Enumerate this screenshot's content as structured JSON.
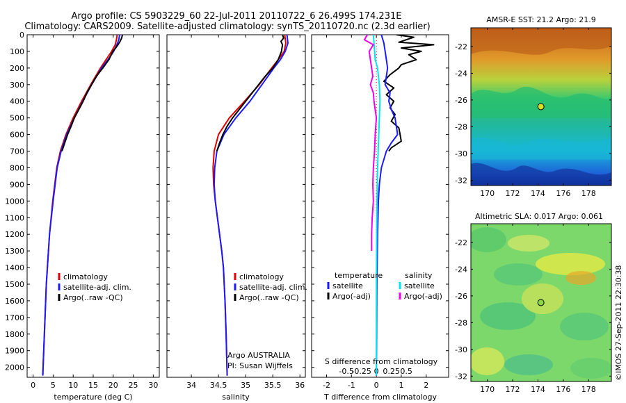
{
  "titles": {
    "line1": "Argo profile: CS 5903229_60 22-Jul-2011 20110722_6 26.499S 174.231E",
    "line2": "Climatology: CARS2009. Satellite-adjusted climatology: synTS_20110720.nc (2.3d earlier)"
  },
  "depth_axis": {
    "ticks": [
      0,
      100,
      200,
      300,
      400,
      500,
      600,
      700,
      800,
      900,
      1000,
      1100,
      1200,
      1300,
      1400,
      1500,
      1600,
      1700,
      1800,
      1900,
      2000
    ],
    "ylim": [
      0,
      2060
    ]
  },
  "colors": {
    "climatology": "#e00000",
    "satellite": "#1a1aff",
    "argo": "#000000",
    "sat_salinity": "#00e5ee",
    "argo_salinity": "#ee00ee"
  },
  "credit": "©IMOS 27-Sep-2011 22:30:38",
  "chart_data": [
    {
      "id": "temperature",
      "type": "line",
      "xlabel": "temperature (deg C)",
      "xlim": [
        -1.5,
        31.5
      ],
      "xticks": [
        0,
        5,
        10,
        15,
        20,
        25,
        30
      ],
      "legend": [
        "climatology",
        "satellite-adj. clim.",
        "Argo(..raw -QC)"
      ],
      "series": [
        {
          "name": "climatology",
          "depth": [
            0,
            30,
            60,
            100,
            150,
            200,
            300,
            400,
            500,
            600,
            700,
            800,
            1000,
            1200,
            1500,
            1800,
            2050
          ],
          "values": [
            21.0,
            20.8,
            20.5,
            19.6,
            18.2,
            16.8,
            14.4,
            12.1,
            10.0,
            8.2,
            6.8,
            5.9,
            4.9,
            4.1,
            3.3,
            2.8,
            2.4
          ]
        },
        {
          "name": "satellite-adj. clim.",
          "depth": [
            0,
            30,
            60,
            100,
            150,
            200,
            300,
            400,
            500,
            600,
            700,
            800,
            1000,
            1200,
            1500,
            1800,
            2050
          ],
          "values": [
            21.6,
            21.4,
            20.9,
            20.1,
            18.7,
            17.1,
            14.6,
            12.4,
            10.3,
            8.4,
            7.0,
            6.0,
            5.0,
            4.1,
            3.3,
            2.8,
            2.4
          ]
        },
        {
          "name": "Argo(..raw -QC)",
          "depth": [
            0,
            20,
            40,
            60,
            80,
            100,
            150,
            200,
            250,
            300,
            350,
            400,
            450,
            500,
            550,
            600,
            650,
            700
          ],
          "values": [
            22.3,
            22.1,
            21.7,
            21.2,
            20.6,
            19.9,
            18.9,
            17.4,
            15.8,
            14.6,
            13.4,
            12.5,
            11.4,
            10.3,
            9.5,
            8.6,
            7.9,
            7.2
          ]
        }
      ]
    },
    {
      "id": "salinity",
      "type": "line",
      "xlabel": "salinity",
      "xlim": [
        33.55,
        36.1
      ],
      "xticks": [
        34,
        34.5,
        35,
        35.5,
        36
      ],
      "legend": [
        "climatology",
        "satellite-adj. clim.",
        "Argo(..raw -QC)"
      ],
      "annotation": [
        "Argo AUSTRALIA",
        "PI: Susan Wijffels"
      ],
      "series": [
        {
          "name": "climatology",
          "depth": [
            0,
            50,
            100,
            150,
            200,
            300,
            400,
            500,
            600,
            700,
            800,
            900,
            1000,
            1100,
            1200,
            1300,
            1400,
            1600,
            1800,
            2050
          ],
          "values": [
            35.72,
            35.74,
            35.71,
            35.6,
            35.48,
            35.25,
            34.98,
            34.7,
            34.5,
            34.42,
            34.4,
            34.41,
            34.44,
            34.48,
            34.52,
            34.56,
            34.59,
            34.62,
            34.64,
            34.66
          ]
        },
        {
          "name": "satellite-adj. clim.",
          "depth": [
            0,
            50,
            100,
            150,
            200,
            300,
            400,
            500,
            600,
            700,
            800,
            900,
            1000,
            1100,
            1200,
            1300,
            1400,
            1600,
            1800,
            2050
          ],
          "values": [
            35.76,
            35.78,
            35.73,
            35.64,
            35.52,
            35.3,
            35.08,
            34.82,
            34.6,
            34.47,
            34.43,
            34.42,
            34.44,
            34.48,
            34.52,
            34.56,
            34.59,
            34.62,
            34.64,
            34.66
          ]
        },
        {
          "name": "Argo(..raw -QC)",
          "depth": [
            0,
            20,
            40,
            60,
            80,
            100,
            150,
            200,
            250,
            300,
            350,
            400,
            450,
            500,
            550,
            600,
            650,
            700
          ],
          "values": [
            35.68,
            35.7,
            35.65,
            35.68,
            35.67,
            35.66,
            35.6,
            35.5,
            35.36,
            35.24,
            35.12,
            35.0,
            34.88,
            34.76,
            34.66,
            34.58,
            34.52,
            34.47
          ]
        }
      ]
    },
    {
      "id": "differences",
      "type": "line",
      "xlabel": "T difference from climatology",
      "xlabel_top": "S difference from climatology",
      "xlim": [
        -2.6,
        2.9
      ],
      "xticks": [
        -2,
        -1,
        0,
        1,
        2
      ],
      "sticks": [
        -0.5,
        -0.25,
        0,
        0.25,
        0.5
      ],
      "sticks_labels": [
        "-0.5",
        "-0.25",
        "0",
        "0.25",
        "0.5"
      ],
      "legend_headers": [
        "temperature",
        "salinity"
      ],
      "legend": [
        "satellite",
        "Argo(-adj)",
        "satellite",
        "Argo(-adj)"
      ],
      "series": [
        {
          "name": "T satellite",
          "depth": [
            0,
            50,
            100,
            150,
            200,
            250,
            300,
            350,
            400,
            450,
            500,
            550,
            600,
            650,
            700,
            750,
            800,
            900,
            1000,
            1200,
            1500,
            1800,
            2050
          ],
          "values": [
            0.2,
            0.3,
            0.35,
            0.4,
            0.45,
            0.4,
            0.35,
            0.55,
            0.5,
            0.6,
            0.75,
            0.8,
            0.85,
            0.6,
            0.4,
            0.3,
            0.2,
            0.12,
            0.08,
            0.05,
            0.02,
            0.01,
            0.0
          ]
        },
        {
          "name": "T Argo(-adj)",
          "depth": [
            0,
            15,
            30,
            45,
            60,
            80,
            100,
            120,
            150,
            180,
            200,
            240,
            280,
            320,
            360,
            400,
            440,
            480,
            520,
            560,
            600,
            640,
            680,
            700
          ],
          "values": [
            0.8,
            1.5,
            1.2,
            0.9,
            2.3,
            1.0,
            1.8,
            1.3,
            1.6,
            1.0,
            0.9,
            0.55,
            0.3,
            0.7,
            0.4,
            0.7,
            0.55,
            0.75,
            0.6,
            0.9,
            0.95,
            1.0,
            0.6,
            0.5
          ]
        },
        {
          "name": "S satellite",
          "depth": [
            0,
            50,
            100,
            150,
            200,
            300,
            400,
            500,
            600,
            800,
            1000,
            1500,
            2050
          ],
          "values": [
            -0.05,
            -0.04,
            -0.03,
            -0.02,
            0.02,
            0.05,
            0.06,
            0.05,
            0.04,
            0.02,
            0.01,
            0.0,
            0.0
          ]
        },
        {
          "name": "S Argo(-adj)",
          "depth": [
            0,
            30,
            60,
            100,
            150,
            200,
            250,
            300,
            350,
            400,
            450,
            500,
            600,
            700,
            800,
            900,
            1000,
            1100,
            1200,
            1300
          ],
          "values": [
            -0.15,
            -0.2,
            -0.05,
            -0.12,
            -0.1,
            -0.08,
            -0.06,
            -0.1,
            -0.05,
            -0.04,
            -0.02,
            0.0,
            -0.02,
            -0.03,
            -0.05,
            -0.06,
            -0.05,
            -0.07,
            -0.08,
            -0.08
          ]
        }
      ]
    },
    {
      "id": "sst_map",
      "type": "heatmap",
      "title": "AMSR-E SST: 21.2 Argo: 21.9",
      "lon_ticks": [
        170,
        172,
        174,
        176,
        178
      ],
      "lat_ticks": [
        -22,
        -24,
        -26,
        -28,
        -30,
        -32
      ],
      "lon_range": [
        168.7,
        179.8
      ],
      "lat_range": [
        -32.4,
        -20.6
      ],
      "profile_lon": 174.231,
      "profile_lat": -26.499
    },
    {
      "id": "sla_map",
      "type": "heatmap",
      "title": "Altimetric SLA: 0.017 Argo: 0.061",
      "lon_ticks": [
        170,
        172,
        174,
        176,
        178
      ],
      "lat_ticks": [
        -22,
        -24,
        -26,
        -28,
        -30,
        -32
      ],
      "lon_range": [
        168.7,
        179.8
      ],
      "lat_range": [
        -32.4,
        -20.6
      ],
      "profile_lon": 174.231,
      "profile_lat": -26.499
    }
  ]
}
